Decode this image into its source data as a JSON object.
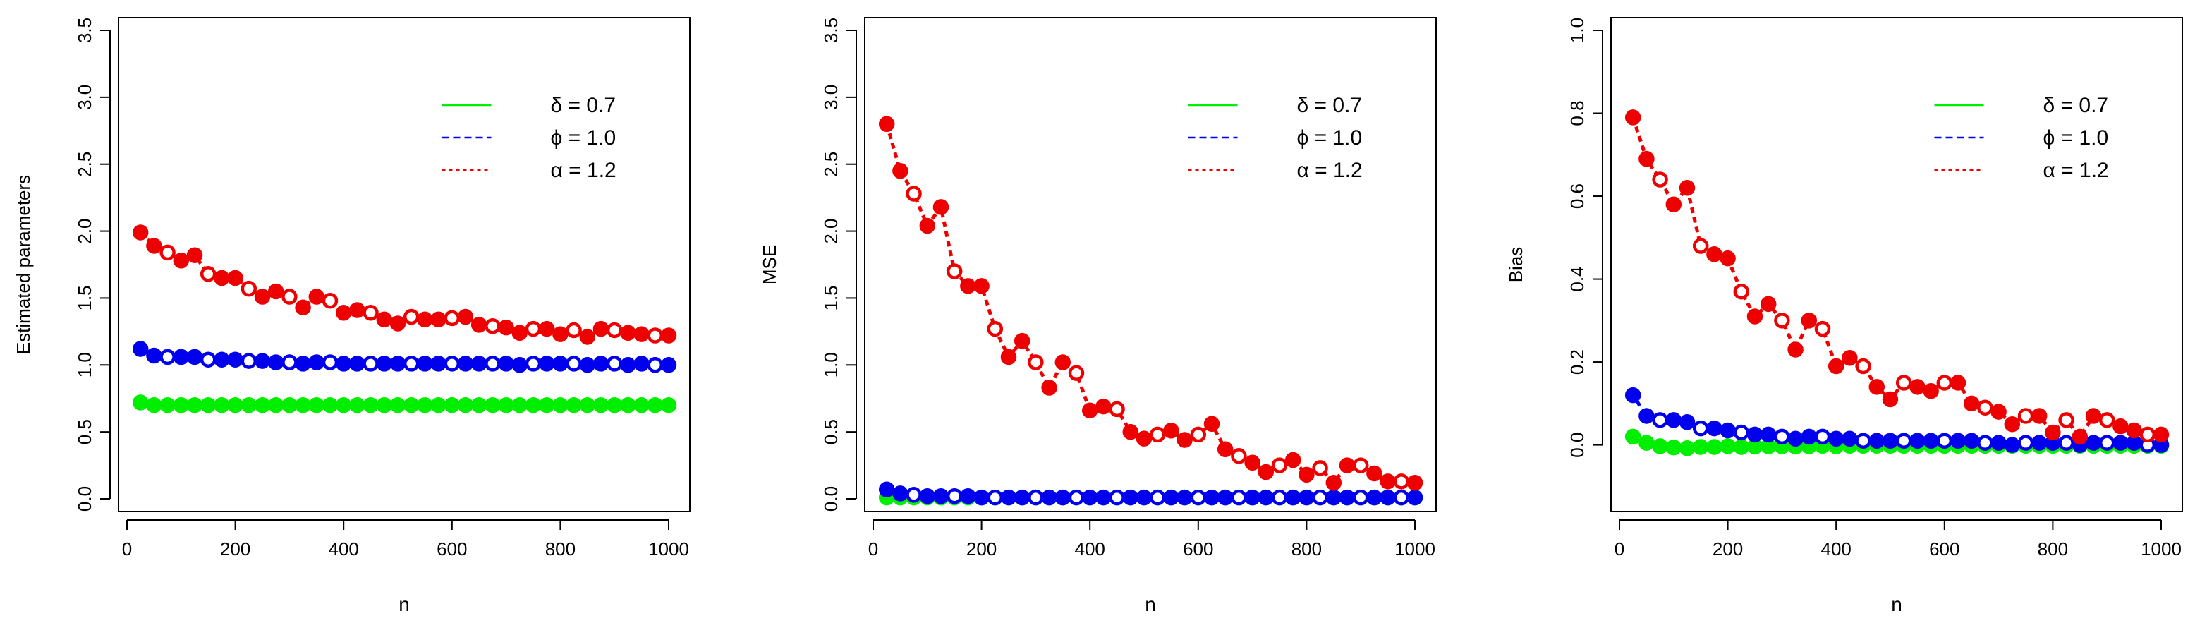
{
  "colors": {
    "delta": "#00ee00",
    "phi": "#0000ee",
    "alpha": "#ee0000",
    "axis": "#000000",
    "background": "#ffffff"
  },
  "legend": [
    {
      "label": "δ = 0.7",
      "series": "delta",
      "dash": "solid"
    },
    {
      "label": "ϕ = 1.0",
      "series": "phi",
      "dash": "dashed"
    },
    {
      "label": "α = 1.2",
      "series": "alpha",
      "dash": "dotted"
    }
  ],
  "chart_data": [
    {
      "type": "line",
      "title": "",
      "xlabel": "n",
      "ylabel": "Estimated parameters",
      "xlim": [
        0,
        1000
      ],
      "ylim": [
        0,
        3.5
      ],
      "xticks": [
        0,
        200,
        400,
        600,
        800,
        1000
      ],
      "xtick_labels": [
        "0",
        "200",
        "400",
        "600",
        "800",
        "1000"
      ],
      "yticks": [
        0,
        0.5,
        1,
        1.5,
        2,
        2.5,
        3,
        3.5
      ],
      "ytick_labels": [
        "0.0",
        "0.5",
        "1.0",
        "1.5",
        "2.0",
        "2.5",
        "3.0",
        "3.5"
      ],
      "grid": false,
      "legend_position": "top-right",
      "x": [
        25,
        50,
        75,
        100,
        125,
        150,
        175,
        200,
        225,
        250,
        275,
        300,
        325,
        350,
        375,
        400,
        425,
        450,
        475,
        500,
        525,
        550,
        575,
        600,
        625,
        650,
        675,
        700,
        725,
        750,
        775,
        800,
        825,
        850,
        875,
        900,
        925,
        950,
        975,
        1000
      ],
      "series": [
        {
          "name": "δ = 0.7",
          "key": "delta",
          "values": [
            0.72,
            0.7,
            0.7,
            0.7,
            0.7,
            0.7,
            0.7,
            0.7,
            0.7,
            0.7,
            0.7,
            0.7,
            0.7,
            0.7,
            0.7,
            0.7,
            0.7,
            0.7,
            0.7,
            0.7,
            0.7,
            0.7,
            0.7,
            0.7,
            0.7,
            0.7,
            0.7,
            0.7,
            0.7,
            0.7,
            0.7,
            0.7,
            0.7,
            0.7,
            0.7,
            0.7,
            0.7,
            0.7,
            0.7,
            0.7
          ]
        },
        {
          "name": "ϕ = 1.0",
          "key": "phi",
          "values": [
            1.12,
            1.07,
            1.06,
            1.06,
            1.06,
            1.04,
            1.04,
            1.04,
            1.03,
            1.03,
            1.02,
            1.02,
            1.01,
            1.02,
            1.02,
            1.01,
            1.01,
            1.01,
            1.01,
            1.01,
            1.01,
            1.01,
            1.01,
            1.01,
            1.01,
            1.01,
            1.01,
            1.01,
            1.0,
            1.01,
            1.01,
            1.01,
            1.01,
            1.0,
            1.01,
            1.01,
            1.0,
            1.01,
            1.0,
            1.0
          ]
        },
        {
          "name": "α = 1.2",
          "key": "alpha",
          "values": [
            1.99,
            1.89,
            1.84,
            1.78,
            1.82,
            1.68,
            1.65,
            1.65,
            1.57,
            1.51,
            1.55,
            1.51,
            1.43,
            1.51,
            1.48,
            1.39,
            1.41,
            1.39,
            1.34,
            1.31,
            1.36,
            1.34,
            1.34,
            1.35,
            1.36,
            1.3,
            1.29,
            1.28,
            1.24,
            1.27,
            1.27,
            1.23,
            1.26,
            1.21,
            1.27,
            1.26,
            1.24,
            1.23,
            1.22,
            1.22
          ]
        }
      ]
    },
    {
      "type": "line",
      "title": "",
      "xlabel": "n",
      "ylabel": "MSE",
      "xlim": [
        0,
        1000
      ],
      "ylim": [
        0,
        3.5
      ],
      "xticks": [
        0,
        200,
        400,
        600,
        800,
        1000
      ],
      "xtick_labels": [
        "0",
        "200",
        "400",
        "600",
        "800",
        "1000"
      ],
      "yticks": [
        0,
        0.5,
        1,
        1.5,
        2,
        2.5,
        3,
        3.5
      ],
      "ytick_labels": [
        "0.0",
        "0.5",
        "1.0",
        "1.5",
        "2.0",
        "2.5",
        "3.0",
        "3.5"
      ],
      "grid": false,
      "legend_position": "top-right",
      "x": [
        25,
        50,
        75,
        100,
        125,
        150,
        175,
        200,
        225,
        250,
        275,
        300,
        325,
        350,
        375,
        400,
        425,
        450,
        475,
        500,
        525,
        550,
        575,
        600,
        625,
        650,
        675,
        700,
        725,
        750,
        775,
        800,
        825,
        850,
        875,
        900,
        925,
        950,
        975,
        1000
      ],
      "series": [
        {
          "name": "δ = 0.7",
          "key": "delta",
          "values": [
            0.01,
            0.01,
            0.01,
            0.01,
            0.01,
            0.01,
            0.01,
            0.01,
            0.01,
            0.01,
            0.01,
            0.01,
            0.01,
            0.01,
            0.01,
            0.01,
            0.01,
            0.01,
            0.01,
            0.01,
            0.01,
            0.01,
            0.01,
            0.01,
            0.01,
            0.01,
            0.01,
            0.01,
            0.01,
            0.01,
            0.01,
            0.01,
            0.01,
            0.01,
            0.01,
            0.01,
            0.01,
            0.01,
            0.01,
            0.01
          ]
        },
        {
          "name": "ϕ = 1.0",
          "key": "phi",
          "values": [
            0.07,
            0.04,
            0.03,
            0.02,
            0.02,
            0.02,
            0.02,
            0.01,
            0.01,
            0.01,
            0.01,
            0.01,
            0.01,
            0.01,
            0.01,
            0.01,
            0.01,
            0.01,
            0.01,
            0.01,
            0.01,
            0.01,
            0.01,
            0.01,
            0.01,
            0.01,
            0.01,
            0.01,
            0.01,
            0.01,
            0.01,
            0.01,
            0.01,
            0.01,
            0.01,
            0.01,
            0.01,
            0.01,
            0.01,
            0.01
          ]
        },
        {
          "name": "α = 1.2",
          "key": "alpha",
          "values": [
            2.8,
            2.45,
            2.28,
            2.04,
            2.18,
            1.7,
            1.59,
            1.59,
            1.27,
            1.06,
            1.18,
            1.02,
            0.83,
            1.02,
            0.94,
            0.66,
            0.69,
            0.67,
            0.5,
            0.45,
            0.48,
            0.51,
            0.44,
            0.48,
            0.56,
            0.37,
            0.32,
            0.27,
            0.2,
            0.25,
            0.29,
            0.18,
            0.23,
            0.12,
            0.25,
            0.25,
            0.19,
            0.13,
            0.13,
            0.12
          ]
        }
      ]
    },
    {
      "type": "line",
      "title": "",
      "xlabel": "n",
      "ylabel": "Bias",
      "xlim": [
        0,
        1000
      ],
      "ylim": [
        -0.13,
        1.0
      ],
      "xticks": [
        0,
        200,
        400,
        600,
        800,
        1000
      ],
      "xtick_labels": [
        "0",
        "200",
        "400",
        "600",
        "800",
        "1000"
      ],
      "yticks": [
        0,
        0.2,
        0.4,
        0.6,
        0.8,
        1.0
      ],
      "ytick_labels": [
        "0.0",
        "0.2",
        "0.4",
        "0.6",
        "0.8",
        "1.0"
      ],
      "grid": false,
      "legend_position": "top-right",
      "x": [
        25,
        50,
        75,
        100,
        125,
        150,
        175,
        200,
        225,
        250,
        275,
        300,
        325,
        350,
        375,
        400,
        425,
        450,
        475,
        500,
        525,
        550,
        575,
        600,
        625,
        650,
        675,
        700,
        725,
        750,
        775,
        800,
        825,
        850,
        875,
        900,
        925,
        950,
        975,
        1000
      ],
      "series": [
        {
          "name": "δ = 0.7",
          "key": "delta",
          "values": [
            0.02,
            0.005,
            -0.003,
            -0.006,
            -0.008,
            -0.005,
            -0.005,
            -0.003,
            -0.005,
            -0.004,
            -0.003,
            -0.003,
            -0.004,
            -0.003,
            -0.002,
            -0.003,
            -0.002,
            -0.002,
            -0.002,
            -0.002,
            -0.002,
            -0.002,
            -0.002,
            -0.002,
            -0.002,
            -0.002,
            -0.002,
            -0.002,
            -0.002,
            -0.002,
            -0.002,
            -0.002,
            -0.002,
            -0.002,
            -0.002,
            -0.002,
            -0.002,
            -0.002,
            -0.002,
            -0.002
          ]
        },
        {
          "name": "ϕ = 1.0",
          "key": "phi",
          "values": [
            0.12,
            0.07,
            0.06,
            0.06,
            0.055,
            0.04,
            0.04,
            0.035,
            0.03,
            0.025,
            0.025,
            0.02,
            0.015,
            0.02,
            0.02,
            0.015,
            0.015,
            0.01,
            0.01,
            0.01,
            0.01,
            0.01,
            0.01,
            0.01,
            0.01,
            0.01,
            0.005,
            0.005,
            0.0,
            0.005,
            0.005,
            0.005,
            0.005,
            0.0,
            0.005,
            0.005,
            0.005,
            0.005,
            0.0,
            0.0
          ]
        },
        {
          "name": "α = 1.2",
          "key": "alpha",
          "values": [
            0.79,
            0.69,
            0.64,
            0.58,
            0.62,
            0.48,
            0.46,
            0.45,
            0.37,
            0.31,
            0.34,
            0.3,
            0.23,
            0.3,
            0.28,
            0.19,
            0.21,
            0.19,
            0.14,
            0.11,
            0.15,
            0.14,
            0.13,
            0.15,
            0.15,
            0.1,
            0.09,
            0.08,
            0.05,
            0.07,
            0.07,
            0.03,
            0.06,
            0.02,
            0.07,
            0.06,
            0.045,
            0.035,
            0.025,
            0.025
          ]
        }
      ]
    }
  ]
}
